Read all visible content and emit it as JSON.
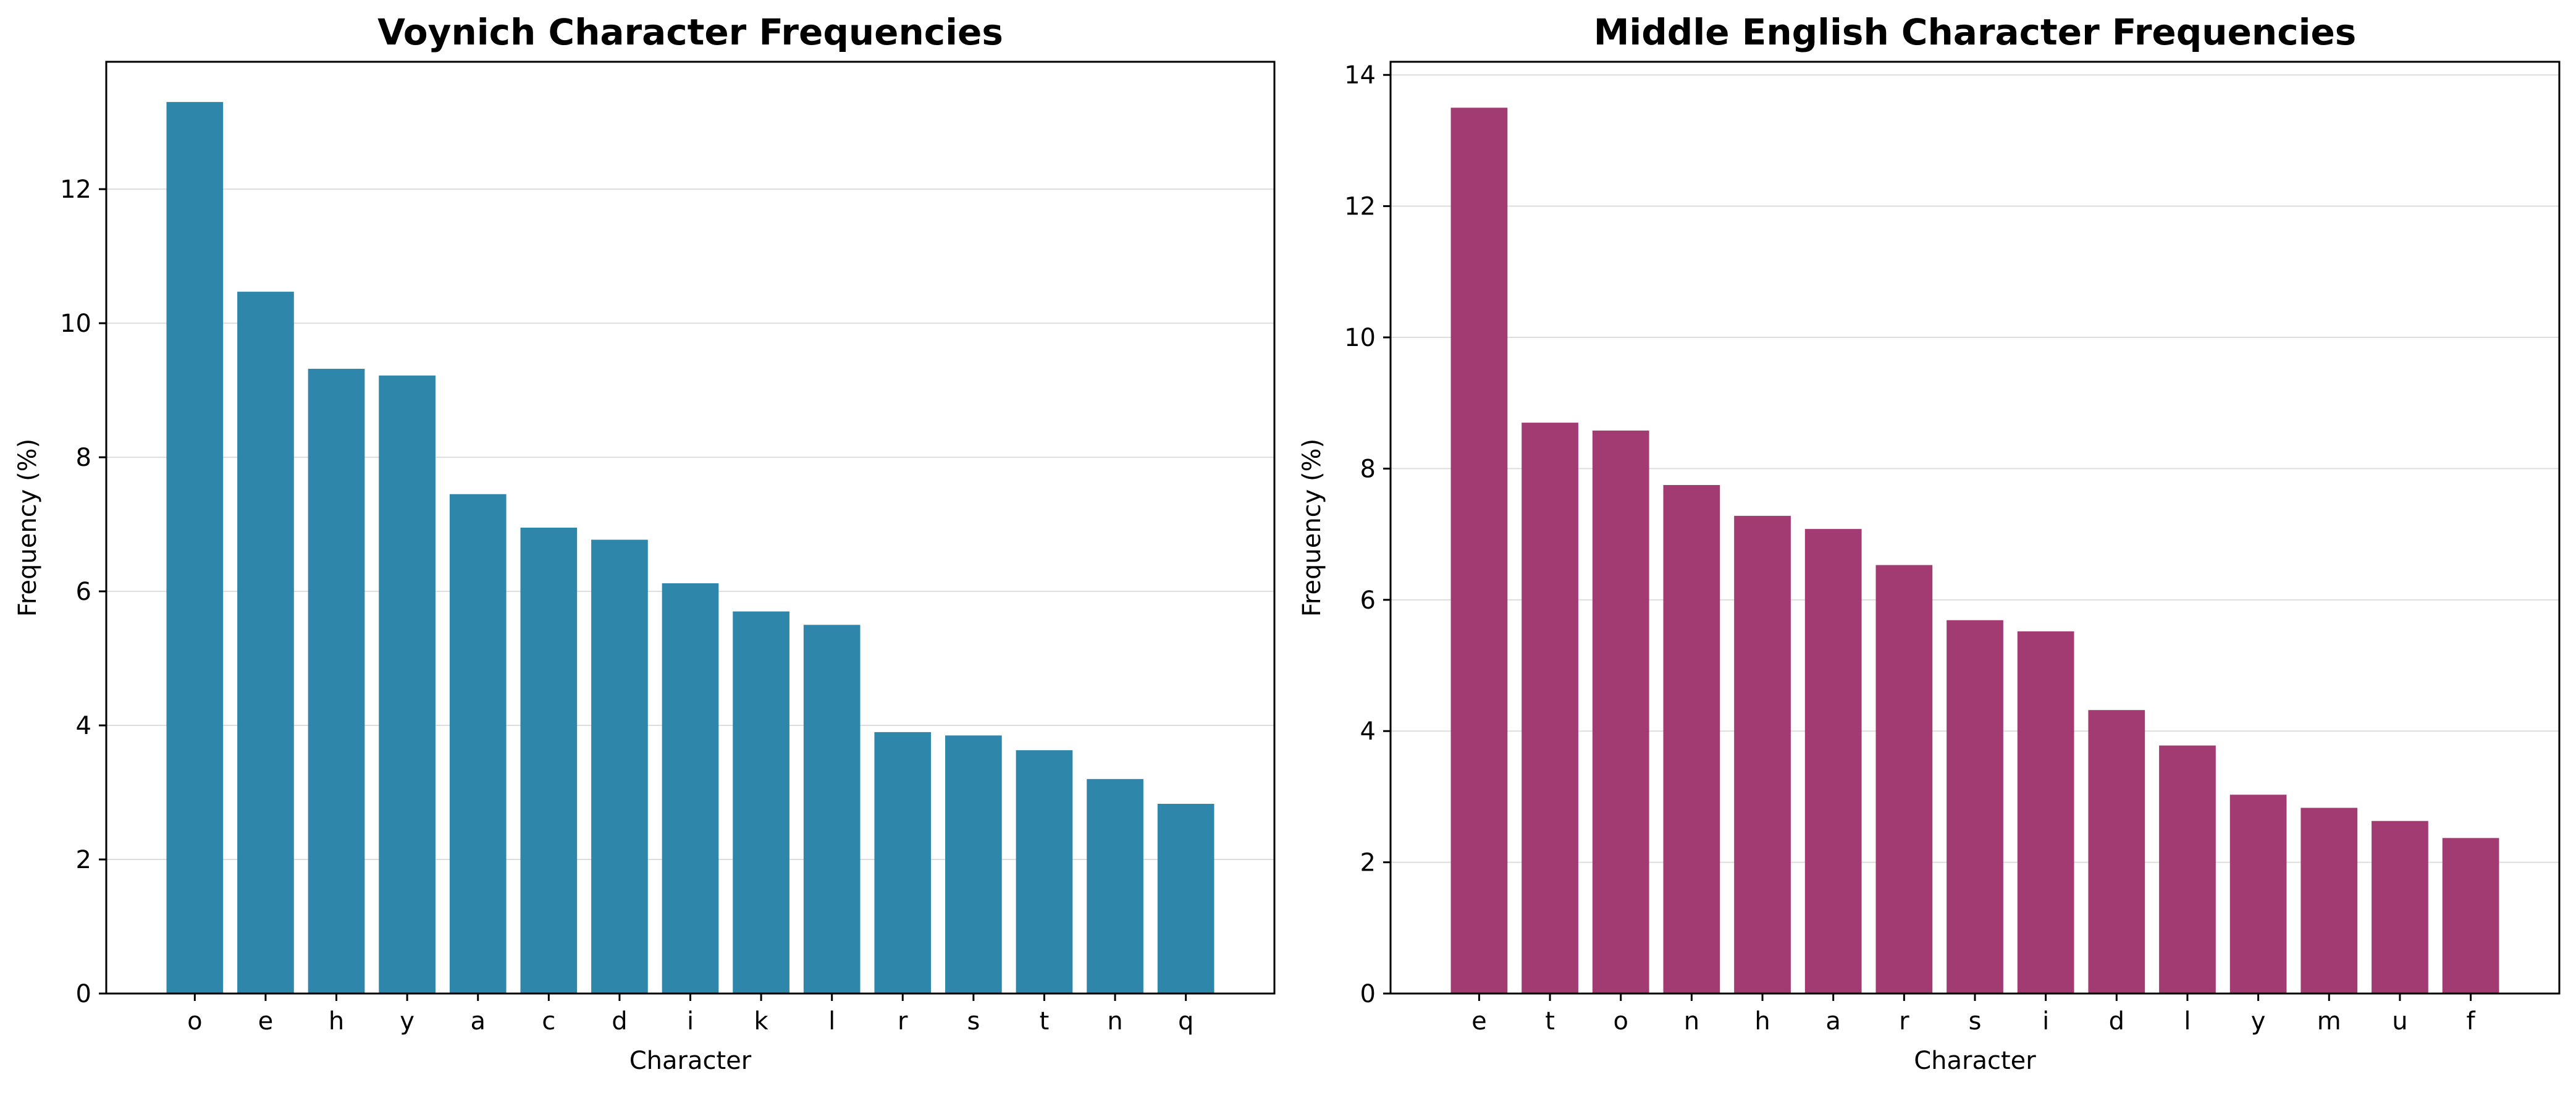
{
  "chart_data": [
    {
      "type": "bar",
      "title": "Voynich Character Frequencies",
      "xlabel": "Character",
      "ylabel": "Frequency (%)",
      "categories": [
        "o",
        "e",
        "h",
        "y",
        "a",
        "c",
        "d",
        "i",
        "k",
        "l",
        "r",
        "s",
        "t",
        "n",
        "q"
      ],
      "values": [
        13.3,
        10.47,
        9.32,
        9.22,
        7.45,
        6.95,
        6.77,
        6.12,
        5.7,
        5.5,
        3.9,
        3.85,
        3.63,
        3.2,
        2.83
      ],
      "ylim": [
        0,
        13.9
      ],
      "yticks": [
        0,
        2,
        4,
        6,
        8,
        10,
        12
      ],
      "grid": "horizontal",
      "color": "#2e86ab"
    },
    {
      "type": "bar",
      "title": "Middle English Character Frequencies",
      "xlabel": "Character",
      "ylabel": "Frequency (%)",
      "categories": [
        "e",
        "t",
        "o",
        "n",
        "h",
        "a",
        "r",
        "s",
        "i",
        "d",
        "l",
        "y",
        "m",
        "u",
        "f"
      ],
      "values": [
        13.5,
        8.7,
        8.58,
        7.75,
        7.28,
        7.08,
        6.53,
        5.69,
        5.52,
        4.32,
        3.78,
        3.03,
        2.83,
        2.63,
        2.37
      ],
      "ylim": [
        0,
        14.2
      ],
      "yticks": [
        0,
        2,
        4,
        6,
        8,
        10,
        12,
        14
      ],
      "grid": "horizontal",
      "color": "#a23b72"
    }
  ]
}
